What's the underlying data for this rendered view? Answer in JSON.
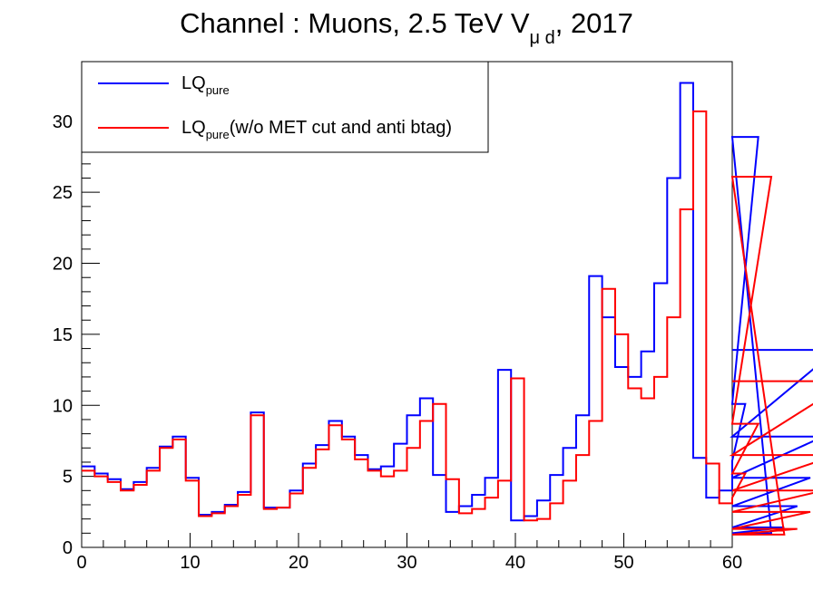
{
  "chart_data": {
    "type": "step",
    "title": {
      "main": "Channel : Muons, 2.5 TeV V",
      "subscript": "μ d",
      "suffix": ", 2017"
    },
    "xlabel": "",
    "ylabel": "",
    "xlim": [
      0,
      60
    ],
    "ylim": [
      0,
      34.2
    ],
    "x_ticks": [
      0,
      10,
      20,
      30,
      40,
      50,
      60
    ],
    "y_ticks": [
      0,
      5,
      10,
      15,
      20,
      25,
      30
    ],
    "bin_width": 1.2,
    "series": [
      {
        "name": "LQ",
        "name_subscript": "pure",
        "name_suffix": "",
        "color": "#0000ff",
        "values": [
          5.7,
          5.2,
          4.8,
          4.1,
          4.6,
          5.6,
          7.1,
          7.8,
          4.9,
          2.3,
          2.5,
          3.0,
          3.9,
          9.5,
          2.8,
          2.8,
          4.0,
          5.9,
          7.2,
          8.9,
          7.8,
          6.5,
          5.5,
          5.7,
          7.3,
          9.3,
          10.5,
          5.1,
          2.5,
          2.9,
          3.7,
          4.9,
          12.5,
          1.9,
          2.2,
          3.3,
          5.1,
          7.0,
          9.3,
          19.1,
          16.2,
          12.7,
          12.0,
          13.8,
          18.6,
          26.0,
          32.7,
          6.3,
          3.5,
          4.0,
          6.1,
          10.1,
          28.9,
          1.0,
          1.4,
          2.9,
          4.9,
          7.8,
          13.9,
          13.9
        ]
      },
      {
        "name": "LQ",
        "name_subscript": "pure",
        "name_suffix": "(w/o MET cut and anti btag)",
        "color": "#ff0000",
        "values": [
          5.4,
          5.0,
          4.6,
          4.0,
          4.4,
          5.4,
          7.0,
          7.6,
          4.7,
          2.2,
          2.4,
          2.9,
          3.7,
          9.3,
          2.7,
          2.8,
          3.8,
          5.6,
          6.9,
          8.6,
          7.6,
          6.2,
          5.4,
          5.0,
          5.4,
          7.0,
          8.9,
          10.1,
          4.8,
          2.4,
          2.7,
          3.5,
          4.7,
          11.9,
          1.9,
          2.0,
          3.1,
          4.7,
          6.5,
          8.9,
          18.2,
          15.0,
          11.2,
          10.5,
          12.0,
          16.2,
          23.8,
          30.7,
          5.9,
          3.1,
          3.5,
          5.2,
          8.7,
          26.1,
          0.9,
          1.3,
          2.5,
          4.0,
          6.5,
          11.7
        ]
      }
    ],
    "legend_position": "top-left",
    "grid": false
  }
}
